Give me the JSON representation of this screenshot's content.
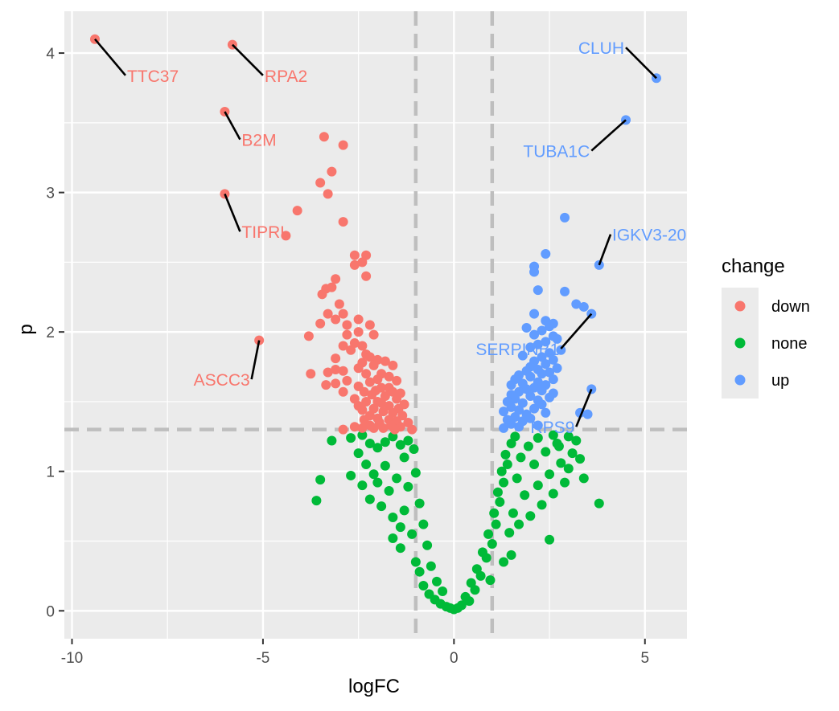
{
  "chart_data": {
    "type": "scatter",
    "title": "",
    "xlabel": "logFC",
    "ylabel": "p",
    "xlim": [
      -10.2,
      6.1
    ],
    "ylim": [
      -0.2,
      4.3
    ],
    "x_ticks": [
      -10,
      -5,
      0,
      5
    ],
    "y_ticks": [
      0,
      1,
      2,
      3,
      4
    ],
    "grid": true,
    "background": "#EBEBEB",
    "legend": {
      "title": "change",
      "placement": "right",
      "entries": [
        {
          "label": "down",
          "color": "#F8766D"
        },
        {
          "label": "none",
          "color": "#00BA38"
        },
        {
          "label": "up",
          "color": "#619CFF"
        }
      ]
    },
    "threshold_lines": {
      "vertical": [
        -1,
        1
      ],
      "horizontal": [
        1.3
      ],
      "color": "#BEBEBE",
      "style": "dashed"
    },
    "series": [
      {
        "name": "down",
        "color": "#F8766D",
        "points": [
          [
            -9.4,
            4.1
          ],
          [
            -5.8,
            4.06
          ],
          [
            -6.0,
            3.58
          ],
          [
            -6.0,
            2.99
          ],
          [
            -5.1,
            1.94
          ],
          [
            -3.4,
            3.4
          ],
          [
            -2.9,
            3.34
          ],
          [
            -3.2,
            3.15
          ],
          [
            -3.5,
            3.07
          ],
          [
            -3.3,
            2.99
          ],
          [
            -4.1,
            2.87
          ],
          [
            -2.9,
            2.79
          ],
          [
            -4.4,
            2.69
          ],
          [
            -2.6,
            2.55
          ],
          [
            -2.3,
            2.55
          ],
          [
            -2.4,
            2.5
          ],
          [
            -2.6,
            2.48
          ],
          [
            -2.3,
            2.4
          ],
          [
            -3.1,
            2.38
          ],
          [
            -3.2,
            2.32
          ],
          [
            -3.35,
            2.31
          ],
          [
            -3.45,
            2.27
          ],
          [
            -3.0,
            2.2
          ],
          [
            -3.3,
            2.13
          ],
          [
            -2.9,
            2.13
          ],
          [
            -3.1,
            2.09
          ],
          [
            -2.5,
            2.09
          ],
          [
            -2.2,
            2.05
          ],
          [
            -3.5,
            2.06
          ],
          [
            -2.8,
            2.05
          ],
          [
            -2.5,
            2.0
          ],
          [
            -3.8,
            1.97
          ],
          [
            -2.8,
            1.98
          ],
          [
            -2.1,
            1.98
          ],
          [
            -2.6,
            1.92
          ],
          [
            -2.4,
            1.9
          ],
          [
            -2.9,
            1.9
          ],
          [
            -2.7,
            1.87
          ],
          [
            -2.3,
            1.84
          ],
          [
            -2.2,
            1.82
          ],
          [
            -3.1,
            1.81
          ],
          [
            -2.0,
            1.8
          ],
          [
            -2.4,
            1.78
          ],
          [
            -1.8,
            1.79
          ],
          [
            -2.1,
            1.76
          ],
          [
            -1.6,
            1.76
          ],
          [
            -2.5,
            1.74
          ],
          [
            -3.1,
            1.73
          ],
          [
            -2.9,
            1.72
          ],
          [
            -3.3,
            1.71
          ],
          [
            -3.75,
            1.7
          ],
          [
            -2.3,
            1.7
          ],
          [
            -1.9,
            1.7
          ],
          [
            -1.7,
            1.68
          ],
          [
            -2.0,
            1.66
          ],
          [
            -2.8,
            1.65
          ],
          [
            -2.2,
            1.64
          ],
          [
            -1.5,
            1.65
          ],
          [
            -3.1,
            1.63
          ],
          [
            -3.35,
            1.62
          ],
          [
            -2.5,
            1.61
          ],
          [
            -1.9,
            1.6
          ],
          [
            -1.7,
            1.6
          ],
          [
            -2.05,
            1.58
          ],
          [
            -2.35,
            1.57
          ],
          [
            -1.6,
            1.57
          ],
          [
            -2.9,
            1.57
          ],
          [
            -1.4,
            1.56
          ],
          [
            -2.15,
            1.55
          ],
          [
            -1.8,
            1.54
          ],
          [
            -2.6,
            1.52
          ],
          [
            -1.5,
            1.52
          ],
          [
            -2.0,
            1.5
          ],
          [
            -2.3,
            1.5
          ],
          [
            -1.9,
            1.49
          ],
          [
            -1.3,
            1.48
          ],
          [
            -2.5,
            1.47
          ],
          [
            -1.7,
            1.47
          ],
          [
            -2.1,
            1.45
          ],
          [
            -1.45,
            1.45
          ],
          [
            -2.4,
            1.44
          ],
          [
            -1.85,
            1.43
          ],
          [
            -1.6,
            1.42
          ],
          [
            -2.2,
            1.4
          ],
          [
            -1.35,
            1.4
          ],
          [
            -2.0,
            1.38
          ],
          [
            -1.7,
            1.37
          ],
          [
            -2.35,
            1.37
          ],
          [
            -1.5,
            1.36
          ],
          [
            -1.95,
            1.35
          ],
          [
            -1.2,
            1.35
          ],
          [
            -2.2,
            1.33
          ],
          [
            -1.65,
            1.33
          ],
          [
            -2.6,
            1.32
          ],
          [
            -1.4,
            1.32
          ],
          [
            -1.85,
            1.31
          ],
          [
            -2.9,
            1.3
          ],
          [
            -2.4,
            1.31
          ],
          [
            -1.1,
            1.3
          ],
          [
            -1.55,
            1.3
          ],
          [
            -2.1,
            1.31
          ]
        ]
      },
      {
        "name": "none",
        "color": "#00BA38",
        "points": [
          [
            -3.2,
            1.22
          ],
          [
            -2.7,
            1.24
          ],
          [
            -2.4,
            1.26
          ],
          [
            -2.2,
            1.2
          ],
          [
            -2.5,
            1.13
          ],
          [
            -2.0,
            1.17
          ],
          [
            -1.8,
            1.21
          ],
          [
            -1.6,
            1.25
          ],
          [
            -1.4,
            1.19
          ],
          [
            -1.2,
            1.22
          ],
          [
            -1.05,
            1.16
          ],
          [
            -3.5,
            0.94
          ],
          [
            -3.6,
            0.79
          ],
          [
            -2.7,
            0.97
          ],
          [
            -2.3,
            1.05
          ],
          [
            -2.1,
            0.98
          ],
          [
            -2.4,
            0.9
          ],
          [
            -2.2,
            0.8
          ],
          [
            -2.0,
            0.92
          ],
          [
            -1.9,
            0.75
          ],
          [
            -1.8,
            1.04
          ],
          [
            -1.7,
            0.86
          ],
          [
            -1.6,
            0.67
          ],
          [
            -1.5,
            0.95
          ],
          [
            -1.4,
            0.6
          ],
          [
            -1.3,
            1.1
          ],
          [
            -1.6,
            0.52
          ],
          [
            -1.4,
            0.45
          ],
          [
            -1.3,
            0.72
          ],
          [
            -1.2,
            0.89
          ],
          [
            -1.1,
            0.55
          ],
          [
            -1.0,
            0.99
          ],
          [
            -1.0,
            0.35
          ],
          [
            -0.9,
            0.77
          ],
          [
            -0.9,
            0.28
          ],
          [
            -0.8,
            0.62
          ],
          [
            -0.8,
            0.18
          ],
          [
            -0.7,
            0.47
          ],
          [
            -0.65,
            0.12
          ],
          [
            -0.6,
            0.32
          ],
          [
            -0.5,
            0.08
          ],
          [
            -0.45,
            0.21
          ],
          [
            -0.35,
            0.05
          ],
          [
            -0.3,
            0.14
          ],
          [
            -0.2,
            0.03
          ],
          [
            -0.1,
            0.02
          ],
          [
            0.0,
            0.01
          ],
          [
            0.1,
            0.02
          ],
          [
            0.2,
            0.04
          ],
          [
            0.3,
            0.1
          ],
          [
            0.4,
            0.07
          ],
          [
            0.45,
            0.2
          ],
          [
            0.55,
            0.15
          ],
          [
            0.6,
            0.3
          ],
          [
            0.7,
            0.25
          ],
          [
            0.75,
            0.42
          ],
          [
            0.85,
            0.38
          ],
          [
            0.9,
            0.55
          ],
          [
            1.0,
            0.48
          ],
          [
            1.05,
            0.7
          ],
          [
            1.1,
            0.62
          ],
          [
            1.15,
            0.85
          ],
          [
            1.2,
            0.78
          ],
          [
            1.25,
            1.0
          ],
          [
            1.3,
            0.92
          ],
          [
            1.35,
            1.12
          ],
          [
            1.4,
            1.05
          ],
          [
            1.45,
            0.56
          ],
          [
            1.5,
            1.2
          ],
          [
            1.55,
            0.7
          ],
          [
            1.6,
            1.25
          ],
          [
            1.65,
            0.95
          ],
          [
            1.7,
            0.62
          ],
          [
            1.75,
            1.1
          ],
          [
            1.85,
            0.83
          ],
          [
            1.95,
            1.18
          ],
          [
            2.0,
            0.68
          ],
          [
            2.1,
            1.05
          ],
          [
            2.2,
            0.9
          ],
          [
            2.3,
            0.76
          ],
          [
            2.4,
            1.14
          ],
          [
            2.5,
            0.98
          ],
          [
            2.6,
            0.84
          ],
          [
            2.5,
            0.51
          ],
          [
            2.7,
            1.2
          ],
          [
            2.8,
            1.06
          ],
          [
            2.9,
            0.92
          ],
          [
            3.0,
            1.25
          ],
          [
            3.1,
            1.13
          ],
          [
            3.2,
            1.22
          ],
          [
            3.3,
            1.09
          ],
          [
            3.4,
            0.95
          ],
          [
            3.0,
            1.02
          ],
          [
            2.75,
            1.18
          ],
          [
            2.6,
            1.26
          ],
          [
            2.2,
            1.24
          ],
          [
            1.3,
            0.35
          ],
          [
            1.5,
            0.4
          ],
          [
            0.95,
            0.22
          ],
          [
            3.8,
            0.77
          ]
        ]
      },
      {
        "name": "up",
        "color": "#619CFF",
        "points": [
          [
            5.3,
            3.82
          ],
          [
            4.5,
            3.52
          ],
          [
            2.9,
            2.82
          ],
          [
            3.8,
            2.48
          ],
          [
            2.4,
            2.56
          ],
          [
            2.1,
            2.47
          ],
          [
            2.1,
            2.43
          ],
          [
            2.2,
            2.3
          ],
          [
            2.9,
            2.29
          ],
          [
            3.2,
            2.2
          ],
          [
            3.4,
            2.18
          ],
          [
            3.6,
            2.13
          ],
          [
            2.1,
            2.13
          ],
          [
            2.4,
            2.08
          ],
          [
            2.6,
            2.06
          ],
          [
            2.5,
            2.04
          ],
          [
            1.9,
            2.03
          ],
          [
            2.3,
            2.01
          ],
          [
            2.1,
            1.98
          ],
          [
            2.6,
            1.97
          ],
          [
            2.7,
            1.95
          ],
          [
            2.4,
            1.93
          ],
          [
            2.2,
            1.91
          ],
          [
            2.0,
            1.89
          ],
          [
            2.8,
            1.87
          ],
          [
            2.5,
            1.85
          ],
          [
            1.8,
            1.83
          ],
          [
            2.3,
            1.82
          ],
          [
            2.6,
            1.8
          ],
          [
            2.1,
            1.79
          ],
          [
            2.4,
            1.77
          ],
          [
            2.0,
            1.75
          ],
          [
            2.7,
            1.74
          ],
          [
            2.2,
            1.73
          ],
          [
            1.9,
            1.72
          ],
          [
            2.5,
            1.71
          ],
          [
            2.3,
            1.7
          ],
          [
            1.7,
            1.69
          ],
          [
            2.0,
            1.68
          ],
          [
            2.6,
            1.66
          ],
          [
            1.6,
            1.66
          ],
          [
            2.2,
            1.64
          ],
          [
            1.8,
            1.63
          ],
          [
            2.4,
            1.62
          ],
          [
            1.5,
            1.62
          ],
          [
            2.1,
            1.6
          ],
          [
            1.9,
            1.59
          ],
          [
            2.3,
            1.58
          ],
          [
            1.7,
            1.57
          ],
          [
            2.6,
            1.56
          ],
          [
            3.6,
            1.59
          ],
          [
            1.5,
            1.55
          ],
          [
            2.0,
            1.54
          ],
          [
            2.5,
            1.53
          ],
          [
            1.6,
            1.52
          ],
          [
            2.2,
            1.51
          ],
          [
            1.4,
            1.5
          ],
          [
            1.8,
            1.49
          ],
          [
            2.3,
            1.48
          ],
          [
            1.5,
            1.46
          ],
          [
            2.1,
            1.45
          ],
          [
            1.7,
            1.44
          ],
          [
            1.3,
            1.43
          ],
          [
            2.4,
            1.42
          ],
          [
            1.9,
            1.41
          ],
          [
            3.3,
            1.42
          ],
          [
            3.5,
            1.41
          ],
          [
            1.6,
            1.39
          ],
          [
            2.0,
            1.38
          ],
          [
            1.4,
            1.37
          ],
          [
            1.8,
            1.36
          ],
          [
            1.5,
            1.34
          ],
          [
            2.2,
            1.33
          ],
          [
            1.7,
            1.32
          ],
          [
            1.3,
            1.31
          ]
        ]
      }
    ],
    "annotations": [
      {
        "label": "TTC37",
        "x": -9.4,
        "y": 4.1,
        "lx": -8.6,
        "ly": 3.84,
        "series": "down"
      },
      {
        "label": "RPA2",
        "x": -5.8,
        "y": 4.06,
        "lx": -5.0,
        "ly": 3.84,
        "series": "down"
      },
      {
        "label": "B2M",
        "x": -6.0,
        "y": 3.58,
        "lx": -5.6,
        "ly": 3.38,
        "series": "down"
      },
      {
        "label": "TIPRL",
        "x": -6.0,
        "y": 2.99,
        "lx": -5.6,
        "ly": 2.72,
        "series": "down"
      },
      {
        "label": "ASCC3",
        "x": -5.1,
        "y": 1.94,
        "lx": -5.3,
        "ly": 1.66,
        "series": "down"
      },
      {
        "label": "CLUH",
        "x": 5.3,
        "y": 3.82,
        "lx": 4.5,
        "ly": 4.04,
        "series": "up"
      },
      {
        "label": "TUBA1C",
        "x": 4.5,
        "y": 3.52,
        "lx": 3.6,
        "ly": 3.3,
        "series": "up"
      },
      {
        "label": "IGKV3-20",
        "x": 3.8,
        "y": 2.48,
        "lx": 4.1,
        "ly": 2.7,
        "series": "up"
      },
      {
        "label": "SERPINB1",
        "x": 3.6,
        "y": 2.13,
        "lx": 2.8,
        "ly": 1.88,
        "series": "up"
      },
      {
        "label": "RPS9",
        "x": 3.6,
        "y": 1.59,
        "lx": 3.2,
        "ly": 1.32,
        "series": "up"
      }
    ]
  }
}
